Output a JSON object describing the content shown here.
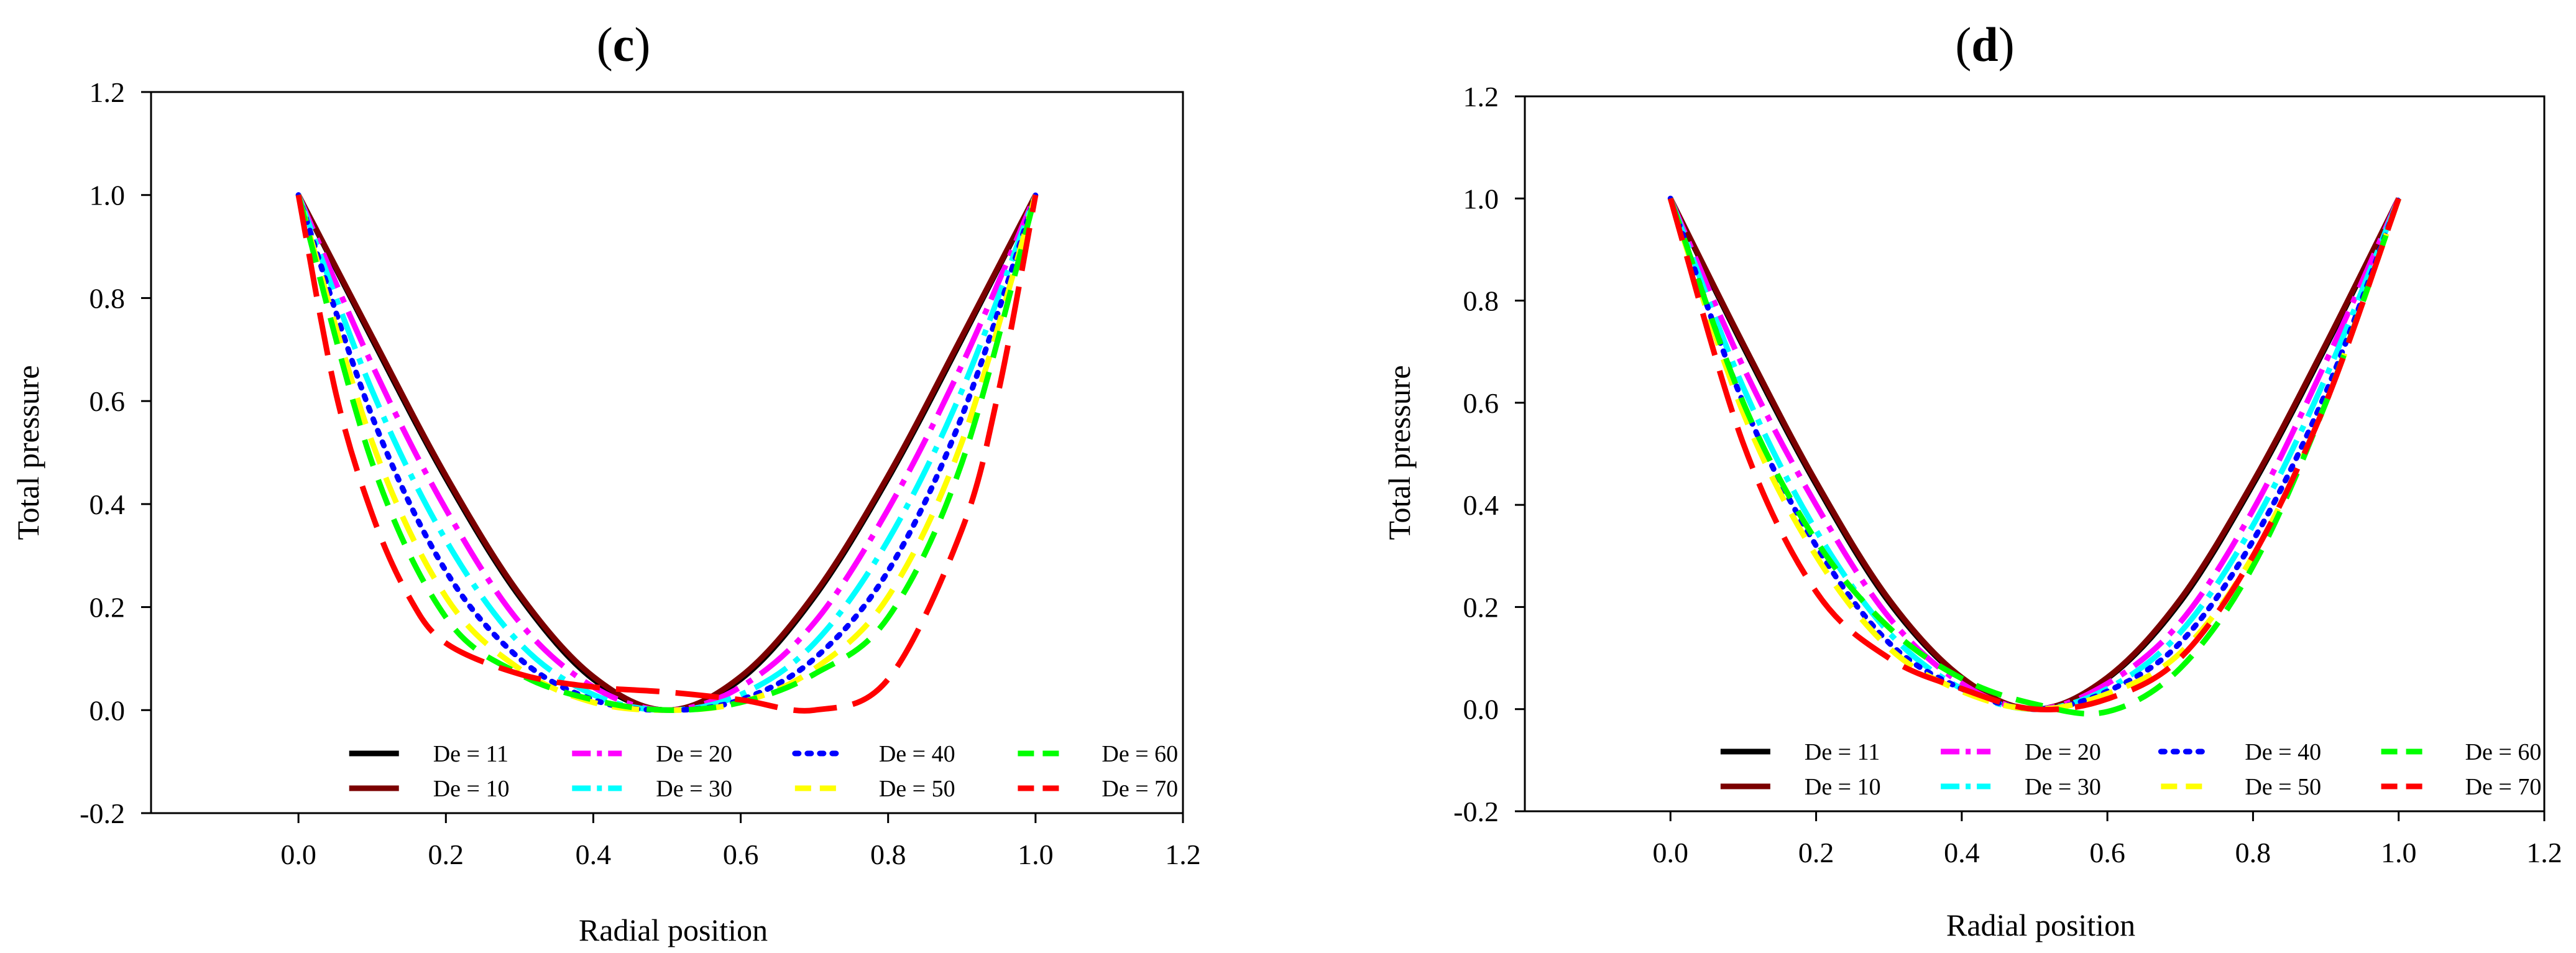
{
  "chart_data": [
    {
      "type": "line",
      "panel_label": "c",
      "title": "(c)",
      "xlabel": "Radial position",
      "ylabel": "Total pressure",
      "xlim": [
        -0.2,
        1.2
      ],
      "ylim": [
        -0.2,
        1.2
      ],
      "xticks": [
        0.0,
        0.2,
        0.4,
        0.6,
        0.8,
        1.0,
        1.2
      ],
      "yticks": [
        -0.2,
        0.0,
        0.2,
        0.4,
        0.6,
        0.8,
        1.0,
        1.2
      ],
      "xtick_labels": [
        "0.0",
        "0.2",
        "0.4",
        "0.6",
        "0.8",
        "1.0",
        "1.2"
      ],
      "ytick_labels": [
        "-0.2",
        "0.0",
        "0.2",
        "0.4",
        "0.6",
        "0.8",
        "1.0",
        "1.2"
      ],
      "legend_position": "bottom-center",
      "grid": false,
      "series": [
        {
          "name": "De = 11",
          "color": "#000000",
          "dash": "solid",
          "x": [
            0.0,
            0.1,
            0.2,
            0.3,
            0.4,
            0.5,
            0.6,
            0.7,
            0.8,
            0.9,
            1.0
          ],
          "y": [
            1.0,
            0.72,
            0.45,
            0.22,
            0.06,
            0.0,
            0.06,
            0.22,
            0.45,
            0.72,
            1.0
          ]
        },
        {
          "name": "De = 10",
          "color": "#7b0000",
          "dash": "solid",
          "x": [
            0.0,
            0.1,
            0.2,
            0.3,
            0.4,
            0.5,
            0.6,
            0.7,
            0.8,
            0.9,
            1.0
          ],
          "y": [
            1.0,
            0.725,
            0.455,
            0.225,
            0.065,
            0.0,
            0.065,
            0.225,
            0.455,
            0.725,
            1.0
          ]
        },
        {
          "name": "De = 20",
          "color": "#ff00ff",
          "dash": "dashdot",
          "x": [
            0.0,
            0.1,
            0.2,
            0.3,
            0.4,
            0.5,
            0.6,
            0.7,
            0.8,
            0.9,
            1.0
          ],
          "y": [
            1.0,
            0.67,
            0.39,
            0.17,
            0.045,
            0.0,
            0.045,
            0.17,
            0.39,
            0.67,
            1.0
          ]
        },
        {
          "name": "De = 30",
          "color": "#00ffff",
          "dash": "dashdot",
          "x": [
            0.0,
            0.1,
            0.2,
            0.3,
            0.4,
            0.5,
            0.6,
            0.7,
            0.8,
            0.9,
            1.0
          ],
          "y": [
            1.0,
            0.62,
            0.33,
            0.13,
            0.03,
            0.0,
            0.03,
            0.13,
            0.33,
            0.62,
            1.0
          ]
        },
        {
          "name": "De = 40",
          "color": "#0000ff",
          "dash": "dotted",
          "x": [
            0.0,
            0.1,
            0.2,
            0.3,
            0.4,
            0.5,
            0.6,
            0.7,
            0.8,
            0.9,
            1.0
          ],
          "y": [
            1.0,
            0.57,
            0.27,
            0.1,
            0.02,
            0.0,
            0.02,
            0.1,
            0.27,
            0.57,
            1.0
          ]
        },
        {
          "name": "De = 50",
          "color": "#ffff00",
          "dash": "dashed",
          "x": [
            0.0,
            0.1,
            0.2,
            0.3,
            0.4,
            0.5,
            0.6,
            0.7,
            0.8,
            0.9,
            1.0
          ],
          "y": [
            1.0,
            0.52,
            0.22,
            0.08,
            0.015,
            0.0,
            0.015,
            0.08,
            0.22,
            0.52,
            1.0
          ]
        },
        {
          "name": "De = 60",
          "color": "#00ff00",
          "dash": "dashed",
          "x": [
            0.0,
            0.1,
            0.2,
            0.3,
            0.4,
            0.5,
            0.6,
            0.7,
            0.8,
            0.9,
            1.0
          ],
          "y": [
            1.0,
            0.48,
            0.18,
            0.07,
            0.02,
            0.0,
            0.015,
            0.07,
            0.18,
            0.48,
            1.0
          ]
        },
        {
          "name": "De = 70",
          "color": "#ff0000",
          "dash": "longdash",
          "x": [
            0.0,
            0.05,
            0.1,
            0.15,
            0.2,
            0.3,
            0.4,
            0.5,
            0.6,
            0.7,
            0.8,
            0.9,
            0.95,
            1.0
          ],
          "y": [
            1.0,
            0.62,
            0.38,
            0.22,
            0.13,
            0.07,
            0.045,
            0.035,
            0.02,
            0.0,
            0.06,
            0.35,
            0.62,
            1.0
          ]
        }
      ]
    },
    {
      "type": "line",
      "panel_label": "d",
      "title": "(d)",
      "xlabel": "Radial position",
      "ylabel": "Total pressure",
      "xlim": [
        -0.2,
        1.2
      ],
      "ylim": [
        -0.2,
        1.2
      ],
      "xticks": [
        0.0,
        0.2,
        0.4,
        0.6,
        0.8,
        1.0,
        1.2
      ],
      "yticks": [
        -0.2,
        0.0,
        0.2,
        0.4,
        0.6,
        0.8,
        1.0,
        1.2
      ],
      "xtick_labels": [
        "0.0",
        "0.2",
        "0.4",
        "0.6",
        "0.8",
        "1.0",
        "1.2"
      ],
      "ytick_labels": [
        "-0.2",
        "0.0",
        "0.2",
        "0.4",
        "0.6",
        "0.8",
        "1.0",
        "1.2"
      ],
      "legend_position": "bottom-center",
      "grid": false,
      "series": [
        {
          "name": "De = 11",
          "color": "#000000",
          "dash": "solid",
          "x": [
            0.0,
            0.1,
            0.2,
            0.3,
            0.4,
            0.5,
            0.6,
            0.7,
            0.8,
            0.9,
            1.0
          ],
          "y": [
            1.0,
            0.71,
            0.44,
            0.21,
            0.06,
            0.0,
            0.06,
            0.21,
            0.44,
            0.71,
            1.0
          ]
        },
        {
          "name": "De = 10",
          "color": "#7b0000",
          "dash": "solid",
          "x": [
            0.0,
            0.1,
            0.2,
            0.3,
            0.4,
            0.5,
            0.6,
            0.7,
            0.8,
            0.9,
            1.0
          ],
          "y": [
            1.0,
            0.715,
            0.445,
            0.215,
            0.062,
            0.0,
            0.062,
            0.215,
            0.445,
            0.715,
            1.0
          ]
        },
        {
          "name": "De = 20",
          "color": "#ff00ff",
          "dash": "dashdot",
          "x": [
            0.0,
            0.1,
            0.2,
            0.3,
            0.4,
            0.5,
            0.6,
            0.7,
            0.8,
            0.9,
            1.0
          ],
          "y": [
            1.0,
            0.67,
            0.4,
            0.18,
            0.05,
            0.0,
            0.05,
            0.17,
            0.39,
            0.68,
            1.0
          ]
        },
        {
          "name": "De = 30",
          "color": "#00ffff",
          "dash": "dashdot",
          "x": [
            0.0,
            0.1,
            0.2,
            0.3,
            0.4,
            0.5,
            0.6,
            0.7,
            0.8,
            0.9,
            1.0
          ],
          "y": [
            1.0,
            0.63,
            0.35,
            0.15,
            0.04,
            0.0,
            0.04,
            0.15,
            0.36,
            0.65,
            1.0
          ]
        },
        {
          "name": "De = 40",
          "color": "#0000ff",
          "dash": "dotted",
          "x": [
            0.0,
            0.1,
            0.2,
            0.3,
            0.4,
            0.5,
            0.6,
            0.7,
            0.8,
            0.9,
            1.0
          ],
          "y": [
            1.0,
            0.6,
            0.32,
            0.13,
            0.04,
            0.0,
            0.035,
            0.13,
            0.33,
            0.62,
            1.0
          ]
        },
        {
          "name": "De = 50",
          "color": "#ffff00",
          "dash": "dashed",
          "x": [
            0.0,
            0.1,
            0.2,
            0.3,
            0.4,
            0.5,
            0.6,
            0.7,
            0.8,
            0.9,
            1.0
          ],
          "y": [
            1.0,
            0.58,
            0.3,
            0.12,
            0.035,
            0.0,
            0.03,
            0.11,
            0.3,
            0.6,
            1.0
          ]
        },
        {
          "name": "De = 60",
          "color": "#00ff00",
          "dash": "dashed",
          "x": [
            0.0,
            0.1,
            0.2,
            0.3,
            0.4,
            0.5,
            0.6,
            0.7,
            0.8,
            0.9,
            1.0
          ],
          "y": [
            1.0,
            0.6,
            0.33,
            0.16,
            0.06,
            0.01,
            -0.005,
            0.08,
            0.28,
            0.6,
            1.0
          ]
        },
        {
          "name": "De = 70",
          "color": "#ff0000",
          "dash": "longdash",
          "x": [
            0.0,
            0.1,
            0.2,
            0.3,
            0.4,
            0.5,
            0.6,
            0.7,
            0.8,
            0.9,
            1.0
          ],
          "y": [
            1.0,
            0.52,
            0.23,
            0.1,
            0.04,
            0.0,
            0.02,
            0.1,
            0.3,
            0.6,
            1.0
          ]
        }
      ]
    }
  ]
}
